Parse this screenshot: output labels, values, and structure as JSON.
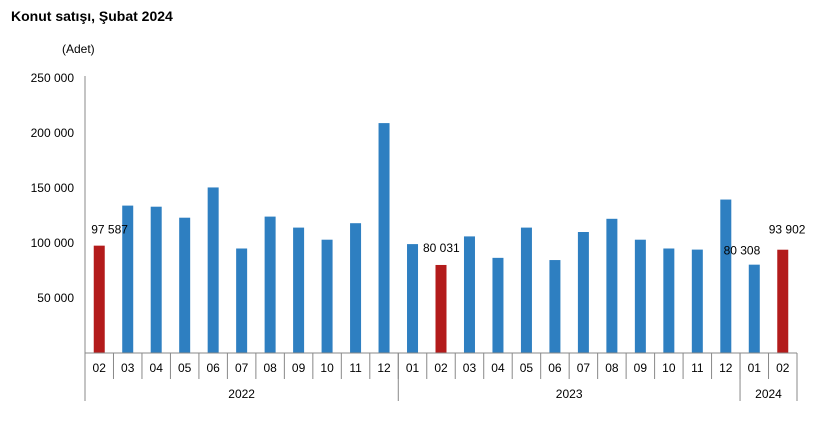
{
  "chart_data": {
    "type": "bar",
    "title": "Konut satışı, Şubat 2024",
    "ylabel": "(Adet)",
    "ylim": [
      0,
      250000
    ],
    "yticks": [
      "250 000",
      "200 000",
      "150 000",
      "100 000",
      "50 000"
    ],
    "ytick_values": [
      250000,
      200000,
      150000,
      100000,
      50000
    ],
    "categories": [
      "02",
      "03",
      "04",
      "05",
      "06",
      "07",
      "08",
      "09",
      "10",
      "11",
      "12",
      "01",
      "02",
      "03",
      "04",
      "05",
      "06",
      "07",
      "08",
      "09",
      "10",
      "11",
      "12",
      "01",
      "02"
    ],
    "values": [
      97587,
      134000,
      133000,
      123000,
      150500,
      95000,
      124000,
      114000,
      103000,
      118000,
      209000,
      99000,
      80031,
      106000,
      86500,
      114000,
      84500,
      110000,
      122000,
      103000,
      95000,
      94000,
      139500,
      80308,
      93902
    ],
    "highlight": [
      true,
      false,
      false,
      false,
      false,
      false,
      false,
      false,
      false,
      false,
      false,
      false,
      true,
      false,
      false,
      false,
      false,
      false,
      false,
      false,
      false,
      false,
      false,
      false,
      true
    ],
    "years": [
      {
        "label": "2022",
        "start": 0,
        "end": 10
      },
      {
        "label": "2023",
        "start": 11,
        "end": 22
      },
      {
        "label": "2024",
        "start": 23,
        "end": 24
      }
    ],
    "data_labels": [
      {
        "index": 0,
        "text": "97 587"
      },
      {
        "index": 12,
        "text": "80 031"
      },
      {
        "index": 23,
        "text": "80 308"
      },
      {
        "index": 24,
        "text": "93 902"
      }
    ],
    "colors": {
      "normal": "#2e7fc1",
      "highlight": "#b31b1b"
    },
    "grid": false
  }
}
